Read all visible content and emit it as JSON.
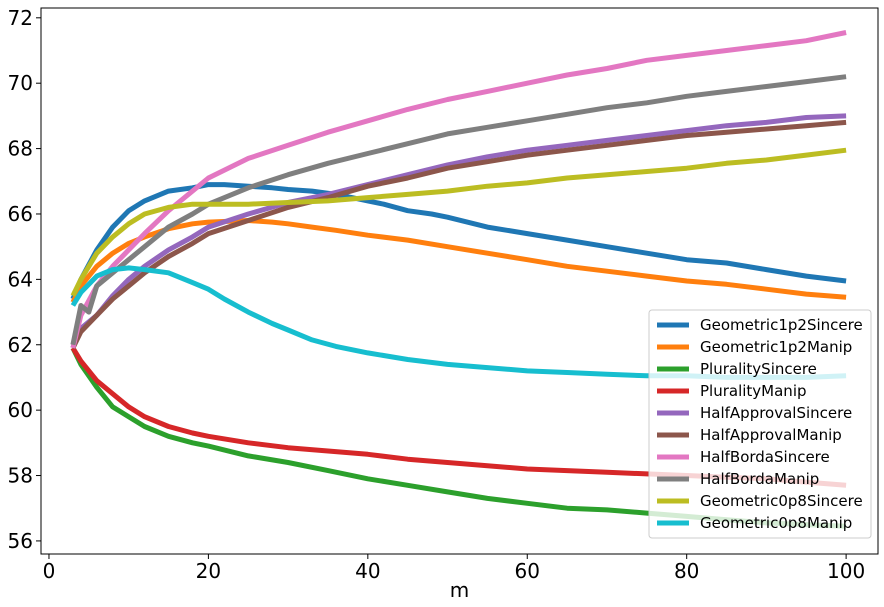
{
  "chart_data": {
    "type": "line",
    "title": "",
    "xlabel": "m",
    "ylabel": "",
    "xlim": [
      -1,
      104
    ],
    "ylim": [
      55.6,
      72.3
    ],
    "xticks": [
      0,
      20,
      40,
      60,
      80,
      100
    ],
    "yticks": [
      56,
      58,
      60,
      62,
      64,
      66,
      68,
      70,
      72
    ],
    "grid": false,
    "legend_position": "lower-right",
    "series": [
      {
        "name": "Geometric1p2Sincere",
        "color": "#1f77b4",
        "points": [
          [
            3,
            63.4
          ],
          [
            4,
            64.0
          ],
          [
            6,
            64.9
          ],
          [
            8,
            65.6
          ],
          [
            10,
            66.1
          ],
          [
            12,
            66.4
          ],
          [
            15,
            66.7
          ],
          [
            18,
            66.8
          ],
          [
            20,
            66.9
          ],
          [
            22,
            66.9
          ],
          [
            25,
            66.85
          ],
          [
            28,
            66.8
          ],
          [
            30,
            66.75
          ],
          [
            33,
            66.7
          ],
          [
            36,
            66.6
          ],
          [
            38,
            66.5
          ],
          [
            40,
            66.4
          ],
          [
            42,
            66.3
          ],
          [
            45,
            66.1
          ],
          [
            48,
            66.0
          ],
          [
            50,
            65.9
          ],
          [
            55,
            65.6
          ],
          [
            60,
            65.4
          ],
          [
            65,
            65.2
          ],
          [
            70,
            65.0
          ],
          [
            75,
            64.8
          ],
          [
            80,
            64.6
          ],
          [
            85,
            64.5
          ],
          [
            90,
            64.3
          ],
          [
            95,
            64.1
          ],
          [
            100,
            63.95
          ]
        ]
      },
      {
        "name": "Geometric1p2Manip",
        "color": "#ff7f0e",
        "points": [
          [
            3,
            63.3
          ],
          [
            4,
            63.8
          ],
          [
            6,
            64.4
          ],
          [
            8,
            64.8
          ],
          [
            10,
            65.1
          ],
          [
            12,
            65.3
          ],
          [
            15,
            65.55
          ],
          [
            18,
            65.7
          ],
          [
            20,
            65.75
          ],
          [
            25,
            65.8
          ],
          [
            28,
            65.75
          ],
          [
            30,
            65.7
          ],
          [
            33,
            65.6
          ],
          [
            36,
            65.5
          ],
          [
            40,
            65.35
          ],
          [
            45,
            65.2
          ],
          [
            50,
            65.0
          ],
          [
            55,
            64.8
          ],
          [
            60,
            64.6
          ],
          [
            65,
            64.4
          ],
          [
            70,
            64.25
          ],
          [
            75,
            64.1
          ],
          [
            80,
            63.95
          ],
          [
            85,
            63.85
          ],
          [
            90,
            63.7
          ],
          [
            95,
            63.55
          ],
          [
            100,
            63.45
          ]
        ]
      },
      {
        "name": "PluralitySincere",
        "color": "#2ca02c",
        "points": [
          [
            3,
            61.9
          ],
          [
            4,
            61.4
          ],
          [
            6,
            60.7
          ],
          [
            8,
            60.1
          ],
          [
            10,
            59.8
          ],
          [
            12,
            59.5
          ],
          [
            15,
            59.2
          ],
          [
            18,
            59.0
          ],
          [
            20,
            58.9
          ],
          [
            25,
            58.6
          ],
          [
            30,
            58.4
          ],
          [
            35,
            58.15
          ],
          [
            40,
            57.9
          ],
          [
            45,
            57.7
          ],
          [
            50,
            57.5
          ],
          [
            55,
            57.3
          ],
          [
            60,
            57.15
          ],
          [
            65,
            57.0
          ],
          [
            70,
            56.95
          ],
          [
            75,
            56.85
          ],
          [
            80,
            56.75
          ],
          [
            85,
            56.65
          ],
          [
            90,
            56.55
          ],
          [
            95,
            56.5
          ],
          [
            100,
            56.45
          ]
        ]
      },
      {
        "name": "PluralityManip",
        "color": "#d62728",
        "points": [
          [
            3,
            61.9
          ],
          [
            4,
            61.5
          ],
          [
            6,
            60.9
          ],
          [
            8,
            60.5
          ],
          [
            10,
            60.1
          ],
          [
            12,
            59.8
          ],
          [
            15,
            59.5
          ],
          [
            18,
            59.3
          ],
          [
            20,
            59.2
          ],
          [
            25,
            59.0
          ],
          [
            30,
            58.85
          ],
          [
            35,
            58.75
          ],
          [
            40,
            58.65
          ],
          [
            45,
            58.5
          ],
          [
            50,
            58.4
          ],
          [
            55,
            58.3
          ],
          [
            60,
            58.2
          ],
          [
            65,
            58.15
          ],
          [
            70,
            58.1
          ],
          [
            75,
            58.05
          ],
          [
            80,
            58.0
          ],
          [
            85,
            57.95
          ],
          [
            90,
            57.9
          ],
          [
            95,
            57.8
          ],
          [
            100,
            57.7
          ]
        ]
      },
      {
        "name": "HalfApprovalSincere",
        "color": "#9467bd",
        "points": [
          [
            3,
            61.9
          ],
          [
            4,
            62.5
          ],
          [
            6,
            62.9
          ],
          [
            8,
            63.5
          ],
          [
            10,
            64.0
          ],
          [
            12,
            64.4
          ],
          [
            15,
            64.9
          ],
          [
            18,
            65.3
          ],
          [
            20,
            65.6
          ],
          [
            25,
            66.0
          ],
          [
            30,
            66.35
          ],
          [
            35,
            66.6
          ],
          [
            40,
            66.9
          ],
          [
            45,
            67.2
          ],
          [
            50,
            67.5
          ],
          [
            55,
            67.75
          ],
          [
            60,
            67.95
          ],
          [
            65,
            68.1
          ],
          [
            70,
            68.25
          ],
          [
            75,
            68.4
          ],
          [
            80,
            68.55
          ],
          [
            85,
            68.7
          ],
          [
            90,
            68.8
          ],
          [
            95,
            68.95
          ],
          [
            100,
            69.0
          ]
        ]
      },
      {
        "name": "HalfApprovalManip",
        "color": "#8c564b",
        "points": [
          [
            3,
            61.9
          ],
          [
            4,
            62.4
          ],
          [
            6,
            62.9
          ],
          [
            8,
            63.4
          ],
          [
            10,
            63.8
          ],
          [
            12,
            64.2
          ],
          [
            15,
            64.7
          ],
          [
            18,
            65.1
          ],
          [
            20,
            65.4
          ],
          [
            25,
            65.8
          ],
          [
            30,
            66.2
          ],
          [
            35,
            66.5
          ],
          [
            40,
            66.85
          ],
          [
            45,
            67.1
          ],
          [
            50,
            67.4
          ],
          [
            55,
            67.6
          ],
          [
            60,
            67.8
          ],
          [
            65,
            67.95
          ],
          [
            70,
            68.1
          ],
          [
            75,
            68.25
          ],
          [
            80,
            68.4
          ],
          [
            85,
            68.5
          ],
          [
            90,
            68.6
          ],
          [
            95,
            68.7
          ],
          [
            100,
            68.8
          ]
        ]
      },
      {
        "name": "HalfBordaSincere",
        "color": "#e377c2",
        "points": [
          [
            3,
            61.9
          ],
          [
            4,
            62.9
          ],
          [
            6,
            63.8
          ],
          [
            8,
            64.4
          ],
          [
            10,
            64.9
          ],
          [
            12,
            65.4
          ],
          [
            15,
            66.1
          ],
          [
            18,
            66.7
          ],
          [
            20,
            67.1
          ],
          [
            25,
            67.7
          ],
          [
            30,
            68.1
          ],
          [
            35,
            68.5
          ],
          [
            40,
            68.85
          ],
          [
            45,
            69.2
          ],
          [
            50,
            69.5
          ],
          [
            55,
            69.75
          ],
          [
            60,
            70.0
          ],
          [
            65,
            70.25
          ],
          [
            70,
            70.45
          ],
          [
            75,
            70.7
          ],
          [
            80,
            70.85
          ],
          [
            85,
            71.0
          ],
          [
            90,
            71.15
          ],
          [
            95,
            71.3
          ],
          [
            100,
            71.55
          ]
        ]
      },
      {
        "name": "HalfBordaManip",
        "color": "#7f7f7f",
        "points": [
          [
            3,
            62.0
          ],
          [
            4,
            63.2
          ],
          [
            5,
            63.0
          ],
          [
            6,
            63.8
          ],
          [
            8,
            64.2
          ],
          [
            10,
            64.6
          ],
          [
            12,
            65.0
          ],
          [
            15,
            65.6
          ],
          [
            18,
            66.0
          ],
          [
            20,
            66.3
          ],
          [
            25,
            66.8
          ],
          [
            30,
            67.2
          ],
          [
            35,
            67.55
          ],
          [
            40,
            67.85
          ],
          [
            45,
            68.15
          ],
          [
            50,
            68.45
          ],
          [
            55,
            68.65
          ],
          [
            60,
            68.85
          ],
          [
            65,
            69.05
          ],
          [
            70,
            69.25
          ],
          [
            75,
            69.4
          ],
          [
            80,
            69.6
          ],
          [
            85,
            69.75
          ],
          [
            90,
            69.9
          ],
          [
            95,
            70.05
          ],
          [
            100,
            70.2
          ]
        ]
      },
      {
        "name": "Geometric0p8Sincere",
        "color": "#bcbd22",
        "points": [
          [
            3,
            63.5
          ],
          [
            4,
            64.0
          ],
          [
            6,
            64.8
          ],
          [
            8,
            65.3
          ],
          [
            10,
            65.7
          ],
          [
            12,
            66.0
          ],
          [
            15,
            66.2
          ],
          [
            18,
            66.3
          ],
          [
            20,
            66.3
          ],
          [
            25,
            66.3
          ],
          [
            30,
            66.35
          ],
          [
            35,
            66.4
          ],
          [
            40,
            66.5
          ],
          [
            45,
            66.6
          ],
          [
            50,
            66.7
          ],
          [
            55,
            66.85
          ],
          [
            60,
            66.95
          ],
          [
            65,
            67.1
          ],
          [
            70,
            67.2
          ],
          [
            75,
            67.3
          ],
          [
            80,
            67.4
          ],
          [
            85,
            67.55
          ],
          [
            90,
            67.65
          ],
          [
            95,
            67.8
          ],
          [
            100,
            67.95
          ]
        ]
      },
      {
        "name": "Geometric0p8Manip",
        "color": "#17becf",
        "points": [
          [
            3,
            63.2
          ],
          [
            4,
            63.6
          ],
          [
            6,
            64.1
          ],
          [
            8,
            64.3
          ],
          [
            10,
            64.35
          ],
          [
            12,
            64.3
          ],
          [
            15,
            64.2
          ],
          [
            18,
            63.9
          ],
          [
            20,
            63.7
          ],
          [
            22,
            63.4
          ],
          [
            25,
            63.0
          ],
          [
            28,
            62.65
          ],
          [
            30,
            62.45
          ],
          [
            33,
            62.15
          ],
          [
            36,
            61.95
          ],
          [
            40,
            61.75
          ],
          [
            45,
            61.55
          ],
          [
            50,
            61.4
          ],
          [
            55,
            61.3
          ],
          [
            60,
            61.2
          ],
          [
            65,
            61.15
          ],
          [
            70,
            61.1
          ],
          [
            75,
            61.05
          ],
          [
            80,
            61.05
          ],
          [
            85,
            61.0
          ],
          [
            90,
            61.0
          ],
          [
            95,
            61.0
          ],
          [
            100,
            61.05
          ]
        ]
      }
    ]
  }
}
